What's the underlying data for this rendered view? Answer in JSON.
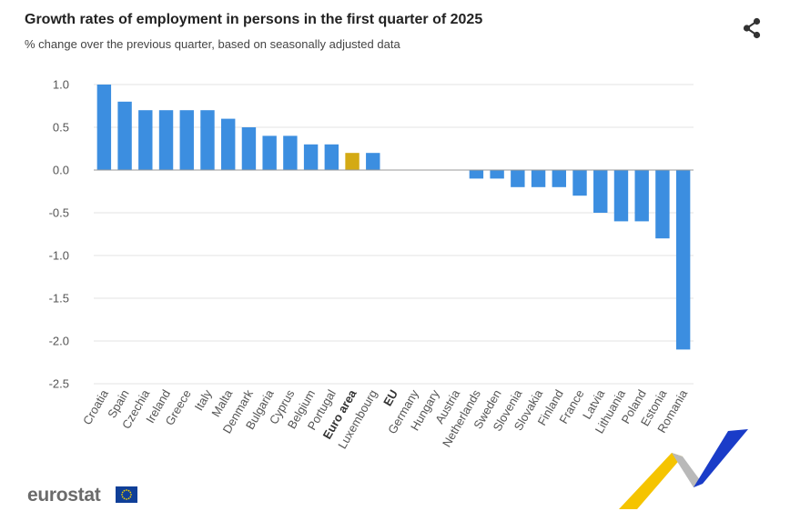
{
  "header": {
    "title": "Growth rates of employment in persons in the first quarter of 2025",
    "subtitle": "% change over the previous quarter, based on seasonally adjusted data"
  },
  "share_icon": "share-icon",
  "logo": {
    "text": "eurostat",
    "flag_icon": "eu-flag-icon"
  },
  "colors": {
    "bar": "#3c8ee0",
    "highlight": "#d4aa14",
    "grid": "#e3e3e3",
    "zero_line": "#999999",
    "ribbon_yellow": "#f5c400",
    "ribbon_blue": "#1a3cc8"
  },
  "chart_data": {
    "type": "bar",
    "title": "Growth rates of employment in persons in the first quarter of 2025",
    "subtitle": "% change over the previous quarter, based on seasonally adjusted data",
    "categories": [
      "Croatia",
      "Spain",
      "Czechia",
      "Ireland",
      "Greece",
      "Italy",
      "Malta",
      "Denmark",
      "Bulgaria",
      "Cyprus",
      "Belgium",
      "Portugal",
      "Euro area",
      "Luxembourg",
      "EU",
      "Germany",
      "Hungary",
      "Austria",
      "Netherlands",
      "Sweden",
      "Slovenia",
      "Slovakia",
      "Finland",
      "France",
      "Latvia",
      "Lithuania",
      "Poland",
      "Estonia",
      "Romania"
    ],
    "values": [
      1.0,
      0.8,
      0.7,
      0.7,
      0.7,
      0.7,
      0.6,
      0.5,
      0.4,
      0.4,
      0.3,
      0.3,
      0.2,
      0.2,
      0.0,
      0.0,
      0.0,
      0.0,
      -0.1,
      -0.1,
      -0.2,
      -0.2,
      -0.2,
      -0.3,
      -0.5,
      -0.6,
      -0.6,
      -0.8,
      -2.1
    ],
    "highlighted": [
      "Euro area"
    ],
    "bold_labels": [
      "Euro area",
      "EU"
    ],
    "ylim": [
      -2.5,
      1.0
    ],
    "yticks": [
      1.0,
      0.5,
      0.0,
      -0.5,
      -1.0,
      -1.5,
      -2.0,
      -2.5
    ],
    "ytick_labels": [
      "1.0",
      "0.5",
      "0.0",
      "-0.5",
      "-1.0",
      "-1.5",
      "-2.0",
      "-2.5"
    ],
    "grid": true,
    "legend": "none"
  }
}
